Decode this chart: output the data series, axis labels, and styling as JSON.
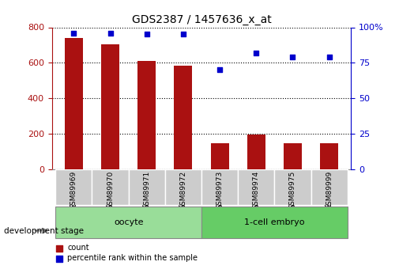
{
  "title": "GDS2387 / 1457636_x_at",
  "samples": [
    "GSM89969",
    "GSM89970",
    "GSM89971",
    "GSM89972",
    "GSM89973",
    "GSM89974",
    "GSM89975",
    "GSM89999"
  ],
  "counts": [
    740,
    705,
    610,
    585,
    148,
    195,
    148,
    148
  ],
  "percentiles": [
    96,
    96,
    95,
    95,
    70,
    82,
    79,
    79
  ],
  "bar_color": "#aa1111",
  "dot_color": "#0000cc",
  "ylim_left": [
    0,
    800
  ],
  "ylim_right": [
    0,
    100
  ],
  "yticks_left": [
    0,
    200,
    400,
    600,
    800
  ],
  "yticks_right": [
    0,
    25,
    50,
    75,
    100
  ],
  "yticklabels_right": [
    "0",
    "25",
    "50",
    "75",
    "100%"
  ],
  "groups": [
    {
      "label": "oocyte",
      "indices": [
        0,
        1,
        2,
        3
      ],
      "color": "#99dd99"
    },
    {
      "label": "1-cell embryo",
      "indices": [
        4,
        5,
        6,
        7
      ],
      "color": "#66cc66"
    }
  ],
  "group_label": "development stage",
  "legend_count_label": "count",
  "legend_pct_label": "percentile rank within the sample",
  "grid_color": "#000000",
  "bg_color": "#ffffff",
  "tick_bg_color": "#cccccc"
}
